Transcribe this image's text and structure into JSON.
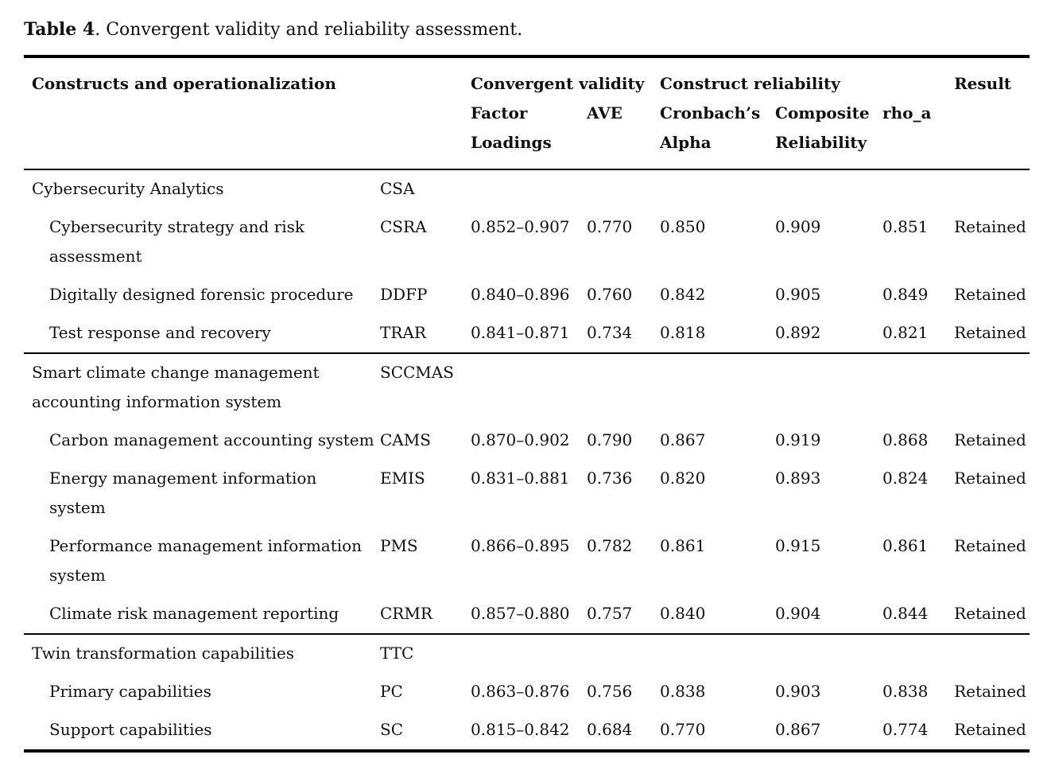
{
  "title": {
    "label_bold": "Table 4",
    "label_rest": ". Convergent validity and reliability assessment."
  },
  "colors": {
    "text": "#101010",
    "background": "#ffffff",
    "rule": "#000000"
  },
  "table": {
    "group_headers": {
      "constructs": "Constructs and operationalization",
      "convergent_validity": "Convergent validity",
      "construct_reliability": "Construct reliability",
      "result": "Result"
    },
    "sub_headers": {
      "factor_loadings": "Factor\nLoadings",
      "ave": "AVE",
      "cronbach_alpha": "Cronbach’s\nAlpha",
      "composite_reliability": "Composite\nReliability",
      "rho_a": "rho_a"
    },
    "sections": [
      {
        "header": {
          "name": "Cybersecurity Analytics",
          "abbr": "CSA"
        },
        "rows": [
          {
            "name": "Cybersecurity strategy and risk\nassessment",
            "abbr": "CSRA",
            "factor_loadings": "0.852–0.907",
            "ave": "0.770",
            "cronbach_alpha": "0.850",
            "composite_reliability": "0.909",
            "rho_a": "0.851",
            "result": "Retained"
          },
          {
            "name": "Digitally designed forensic procedure",
            "abbr": "DDFP",
            "factor_loadings": "0.840–0.896",
            "ave": "0.760",
            "cronbach_alpha": "0.842",
            "composite_reliability": "0.905",
            "rho_a": "0.849",
            "result": "Retained"
          },
          {
            "name": "Test response and recovery",
            "abbr": "TRAR",
            "factor_loadings": "0.841–0.871",
            "ave": "0.734",
            "cronbach_alpha": "0.818",
            "composite_reliability": "0.892",
            "rho_a": "0.821",
            "result": "Retained"
          }
        ]
      },
      {
        "header": {
          "name": "Smart climate change management\naccounting information system",
          "abbr": "SCCMAS"
        },
        "rows": [
          {
            "name": "Carbon management accounting system",
            "abbr": "CAMS",
            "factor_loadings": "0.870–0.902",
            "ave": "0.790",
            "cronbach_alpha": "0.867",
            "composite_reliability": "0.919",
            "rho_a": "0.868",
            "result": "Retained"
          },
          {
            "name": "Energy management information\nsystem",
            "abbr": "EMIS",
            "factor_loadings": "0.831–0.881",
            "ave": "0.736",
            "cronbach_alpha": "0.820",
            "composite_reliability": "0.893",
            "rho_a": "0.824",
            "result": "Retained"
          },
          {
            "name": "Performance management information\nsystem",
            "abbr": "PMS",
            "factor_loadings": "0.866–0.895",
            "ave": "0.782",
            "cronbach_alpha": "0.861",
            "composite_reliability": "0.915",
            "rho_a": "0.861",
            "result": "Retained"
          },
          {
            "name": "Climate risk management reporting",
            "abbr": "CRMR",
            "factor_loadings": "0.857–0.880",
            "ave": "0.757",
            "cronbach_alpha": "0.840",
            "composite_reliability": "0.904",
            "rho_a": "0.844",
            "result": "Retained"
          }
        ]
      },
      {
        "header": {
          "name": "Twin transformation capabilities",
          "abbr": "TTC"
        },
        "rows": [
          {
            "name": "Primary capabilities",
            "abbr": "PC",
            "factor_loadings": "0.863–0.876",
            "ave": "0.756",
            "cronbach_alpha": "0.838",
            "composite_reliability": "0.903",
            "rho_a": "0.838",
            "result": "Retained"
          },
          {
            "name": "Support capabilities",
            "abbr": "SC",
            "factor_loadings": "0.815–0.842",
            "ave": "0.684",
            "cronbach_alpha": "0.770",
            "composite_reliability": "0.867",
            "rho_a": "0.774",
            "result": "Retained"
          }
        ]
      }
    ]
  }
}
